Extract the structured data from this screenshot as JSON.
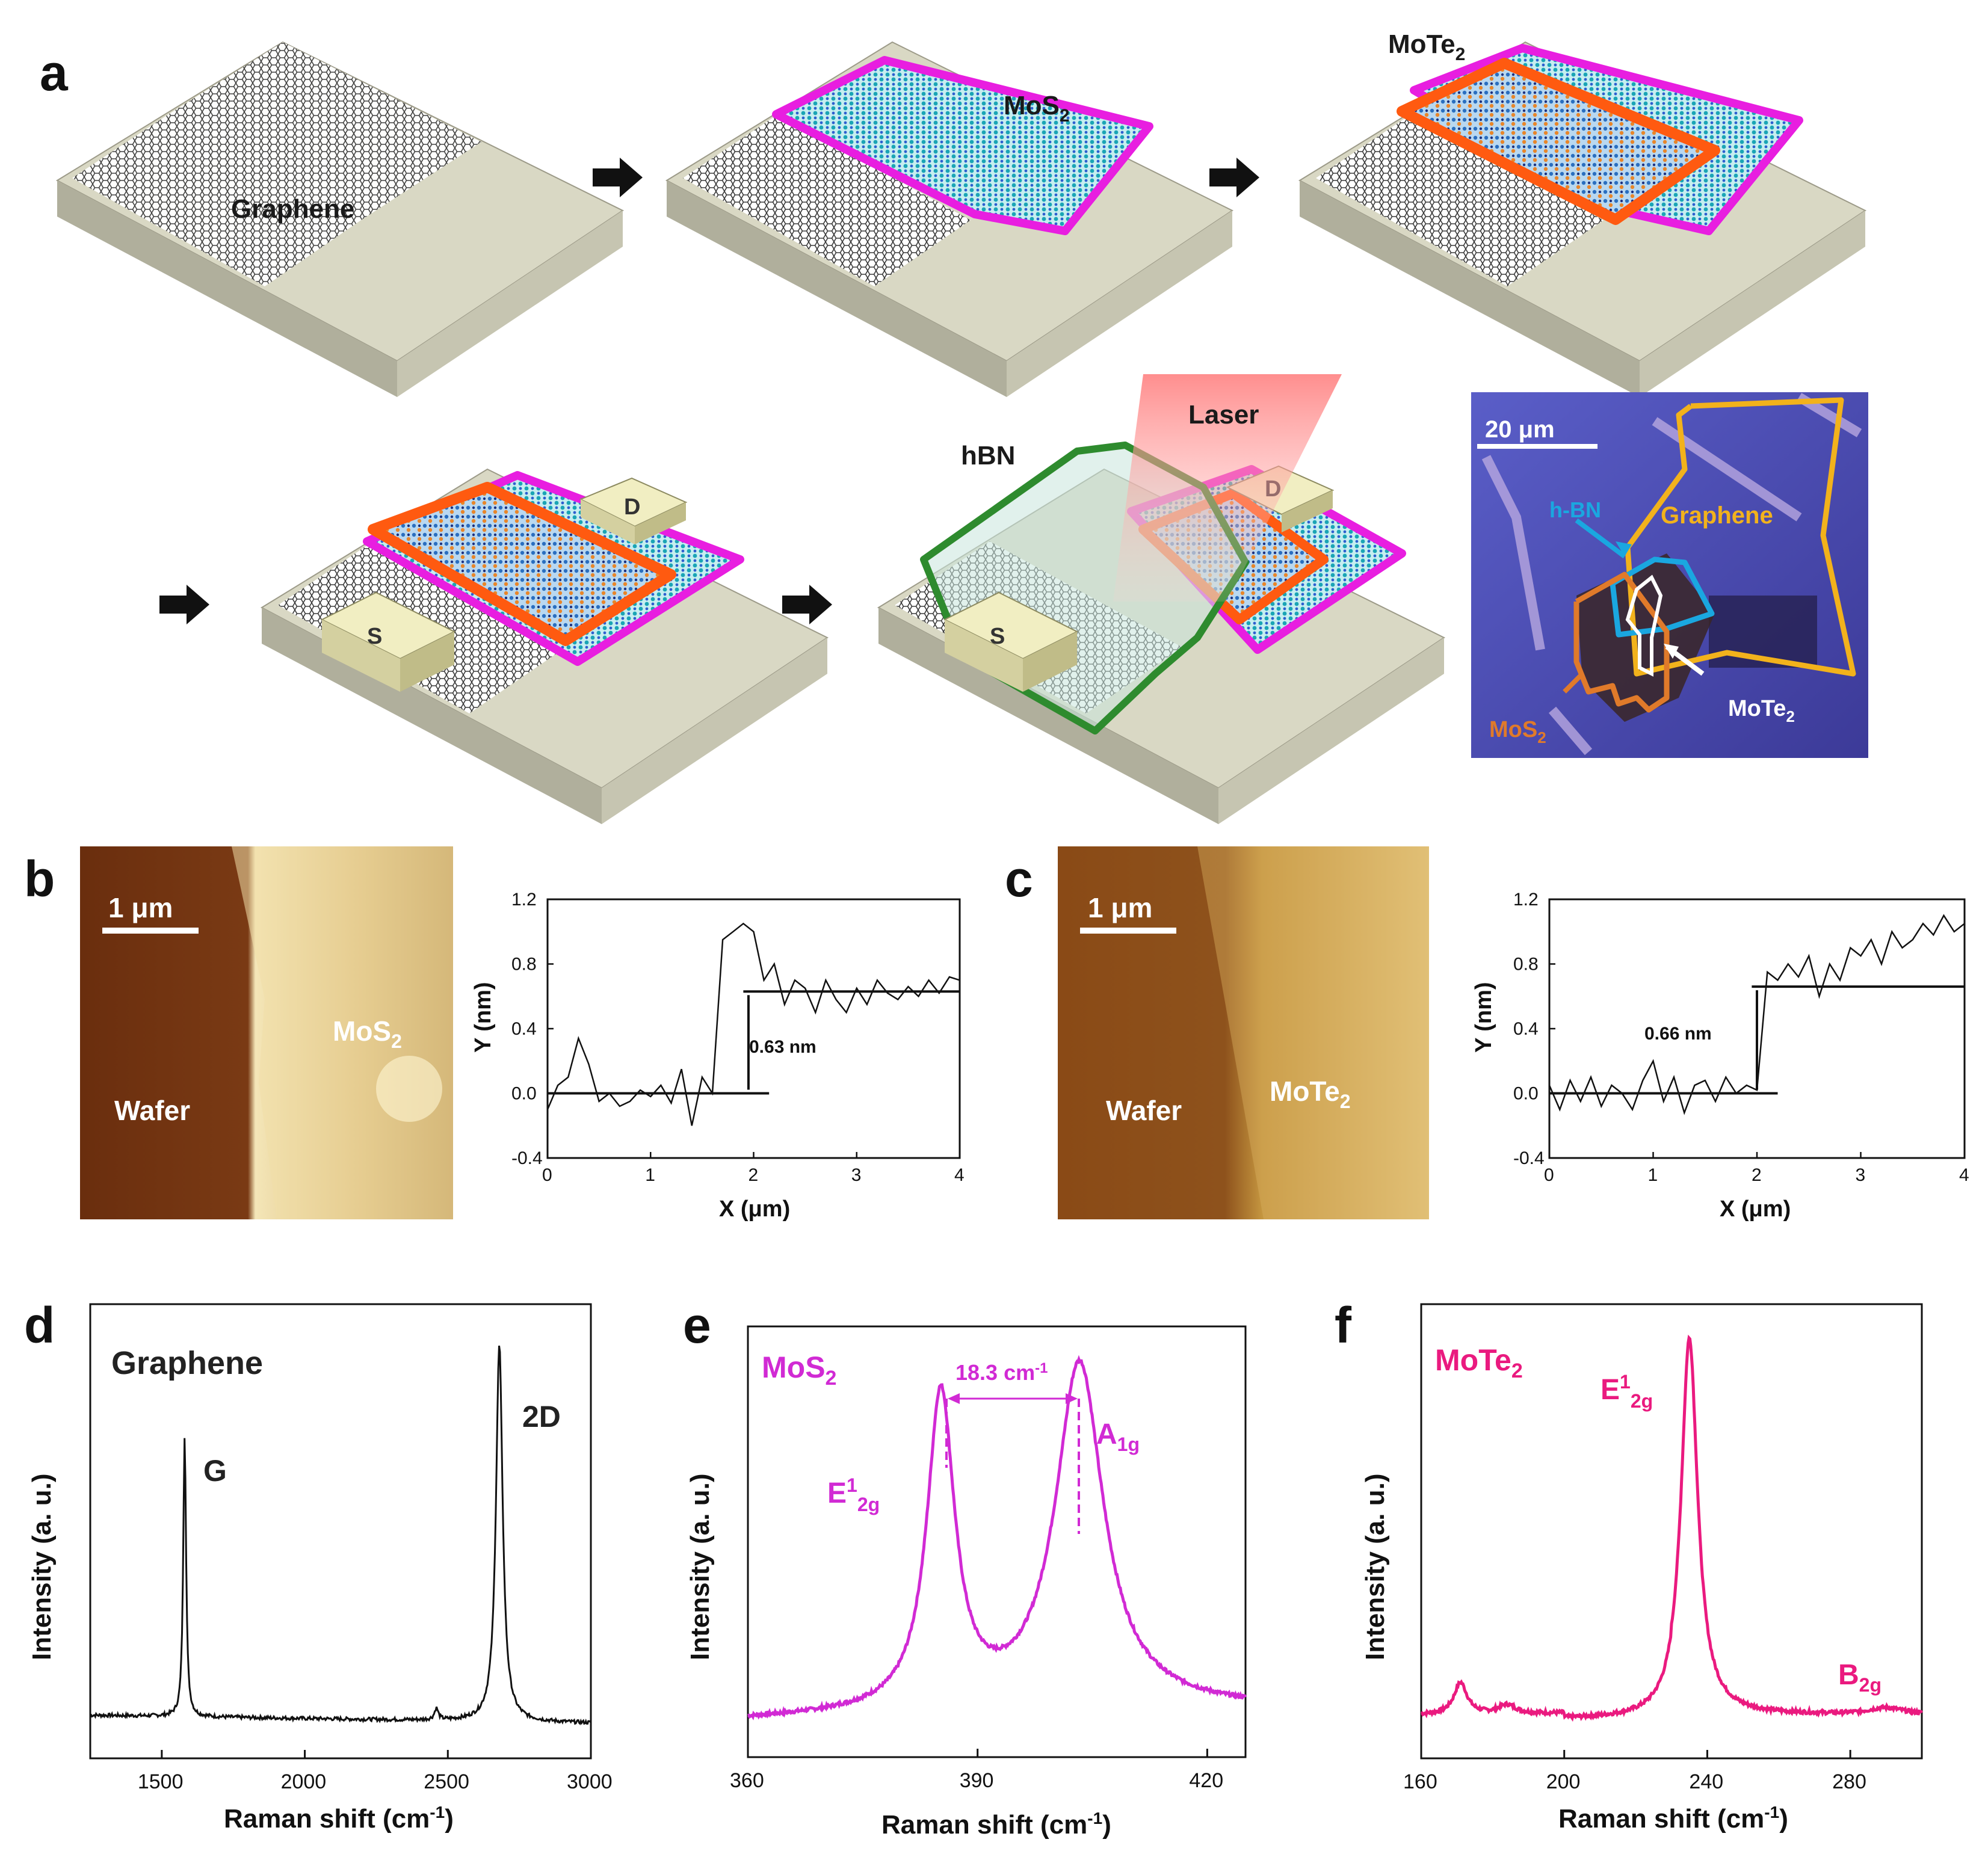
{
  "panels": {
    "a": {
      "letter": "a",
      "graphene": "Graphene",
      "mos2": "MoS",
      "mos2_sub": "2",
      "mote2": "MoTe",
      "mote2_sub": "2",
      "source": "S",
      "drain": "D",
      "hbn": "hBN",
      "laser": "Laser",
      "micro": {
        "scale": "20 μm",
        "hbn": "h-BN",
        "graphene": "Graphene",
        "mos2": "MoS",
        "mos2_sub": "2",
        "mote2": "MoTe",
        "mote2_sub": "2"
      }
    },
    "b": {
      "letter": "b",
      "scale": "1 μm",
      "wafer": "Wafer",
      "material": "MoS",
      "material_sub": "2",
      "step": "0.63 nm"
    },
    "c": {
      "letter": "c",
      "scale": "1 μm",
      "wafer": "Wafer",
      "material": "MoTe",
      "material_sub": "2",
      "step": "0.66 nm"
    },
    "d": {
      "letter": "d",
      "title": "Graphene",
      "peak_g": "G",
      "peak_2d": "2D"
    },
    "e": {
      "letter": "e",
      "title": "MoS",
      "title_sub": "2",
      "separation": "18.3 cm",
      "separation_sup": "-1",
      "e_label": "E",
      "e_sup": "1",
      "e_sub": "2g",
      "a_label": "A",
      "a_sub": "1g"
    },
    "f": {
      "letter": "f",
      "title": "MoTe",
      "title_sub": "2",
      "e_label": "E",
      "e_sup": "1",
      "e_sub": "2g",
      "b_label": "B",
      "b_sub": "2g"
    }
  },
  "afm_axes": {
    "ylabel": "Y (nm)",
    "xlabel": "X (μm)",
    "xticks": [
      "0",
      "1",
      "2",
      "3",
      "4"
    ],
    "yticks": [
      "1.2",
      "0.8",
      "0.4",
      "0.0",
      "-0.4"
    ]
  },
  "raman_axes": {
    "ylabel": "Intensity (a. u.)",
    "xlabel": "Raman shift (cm",
    "xlabel_sup": "-1",
    "xlabel_end": ")"
  },
  "colors": {
    "mos2": "#e81ee0",
    "mote2": "#ff6a1a",
    "hbn": "#2e8b2e",
    "graphene_outline": "#f2b21c",
    "hbn_outline": "#1aa7e0",
    "mos2_outline": "#e07a2a",
    "raman_d": "#111111",
    "raman_e": "#d12ad4",
    "raman_f": "#ea1a7f"
  },
  "chart_data": [
    {
      "type": "line",
      "id": "afm-b",
      "xlabel": "X (μm)",
      "ylabel": "Y (nm)",
      "xlim": [
        0,
        4
      ],
      "ylim": [
        -0.4,
        1.2
      ],
      "step_height_nm": 0.63,
      "x": [
        0,
        0.1,
        0.2,
        0.3,
        0.4,
        0.5,
        0.6,
        0.7,
        0.8,
        0.9,
        1.0,
        1.1,
        1.2,
        1.3,
        1.4,
        1.5,
        1.6,
        1.7,
        1.8,
        1.9,
        2.0,
        2.1,
        2.2,
        2.3,
        2.4,
        2.5,
        2.6,
        2.7,
        2.8,
        2.9,
        3.0,
        3.1,
        3.2,
        3.3,
        3.4,
        3.5,
        3.6,
        3.7,
        3.8,
        3.9,
        4.0
      ],
      "y": [
        -0.1,
        0.05,
        0.1,
        0.34,
        0.18,
        -0.05,
        0.0,
        -0.08,
        -0.05,
        0.02,
        -0.02,
        0.05,
        -0.06,
        0.15,
        -0.2,
        0.1,
        0.0,
        0.95,
        1.0,
        1.05,
        1.0,
        0.7,
        0.8,
        0.55,
        0.7,
        0.65,
        0.5,
        0.7,
        0.58,
        0.5,
        0.65,
        0.55,
        0.7,
        0.62,
        0.58,
        0.66,
        0.6,
        0.7,
        0.62,
        0.72,
        0.7
      ]
    },
    {
      "type": "line",
      "id": "afm-c",
      "xlabel": "X (μm)",
      "ylabel": "Y (nm)",
      "xlim": [
        0,
        4
      ],
      "ylim": [
        -0.4,
        1.2
      ],
      "step_height_nm": 0.66,
      "x": [
        0,
        0.1,
        0.2,
        0.3,
        0.4,
        0.5,
        0.6,
        0.7,
        0.8,
        0.9,
        1.0,
        1.1,
        1.2,
        1.3,
        1.4,
        1.5,
        1.6,
        1.7,
        1.8,
        1.9,
        2.0,
        2.1,
        2.2,
        2.3,
        2.4,
        2.5,
        2.6,
        2.7,
        2.8,
        2.9,
        3.0,
        3.1,
        3.2,
        3.3,
        3.4,
        3.5,
        3.6,
        3.7,
        3.8,
        3.9,
        4.0
      ],
      "y": [
        0.05,
        -0.1,
        0.08,
        -0.05,
        0.1,
        -0.08,
        0.05,
        0.0,
        -0.1,
        0.08,
        0.2,
        -0.05,
        0.1,
        -0.12,
        0.05,
        0.08,
        -0.05,
        0.1,
        0.0,
        0.05,
        0.02,
        0.75,
        0.7,
        0.8,
        0.72,
        0.85,
        0.6,
        0.8,
        0.7,
        0.9,
        0.85,
        0.95,
        0.8,
        1.0,
        0.9,
        0.95,
        1.05,
        0.98,
        1.1,
        1.0,
        1.05
      ]
    },
    {
      "type": "line",
      "id": "raman-d",
      "xlabel": "Raman shift (cm-1)",
      "ylabel": "Intensity (a. u.)",
      "xlim": [
        1250,
        3000
      ],
      "xticks": [
        1500,
        2000,
        2500,
        3000
      ],
      "peaks": [
        {
          "name": "G",
          "x": 1580
        },
        {
          "name": "2D",
          "x": 2680
        },
        {
          "name": "",
          "x": 2460
        }
      ]
    },
    {
      "type": "line",
      "id": "raman-e",
      "xlabel": "Raman shift (cm-1)",
      "ylabel": "Intensity (a. u.)",
      "xlim": [
        360,
        425
      ],
      "xticks": [
        360,
        390,
        420
      ],
      "peaks": [
        {
          "name": "E12g",
          "x": 385
        },
        {
          "name": "A1g",
          "x": 403.3
        }
      ],
      "separation_cm1": 18.3
    },
    {
      "type": "line",
      "id": "raman-f",
      "xlabel": "Raman shift (cm-1)",
      "ylabel": "Intensity (a. u.)",
      "xlim": [
        160,
        300
      ],
      "xticks": [
        160,
        200,
        240,
        280
      ],
      "peaks": [
        {
          "name": "E12g",
          "x": 235
        },
        {
          "name": "B2g",
          "x": 290
        }
      ]
    }
  ]
}
